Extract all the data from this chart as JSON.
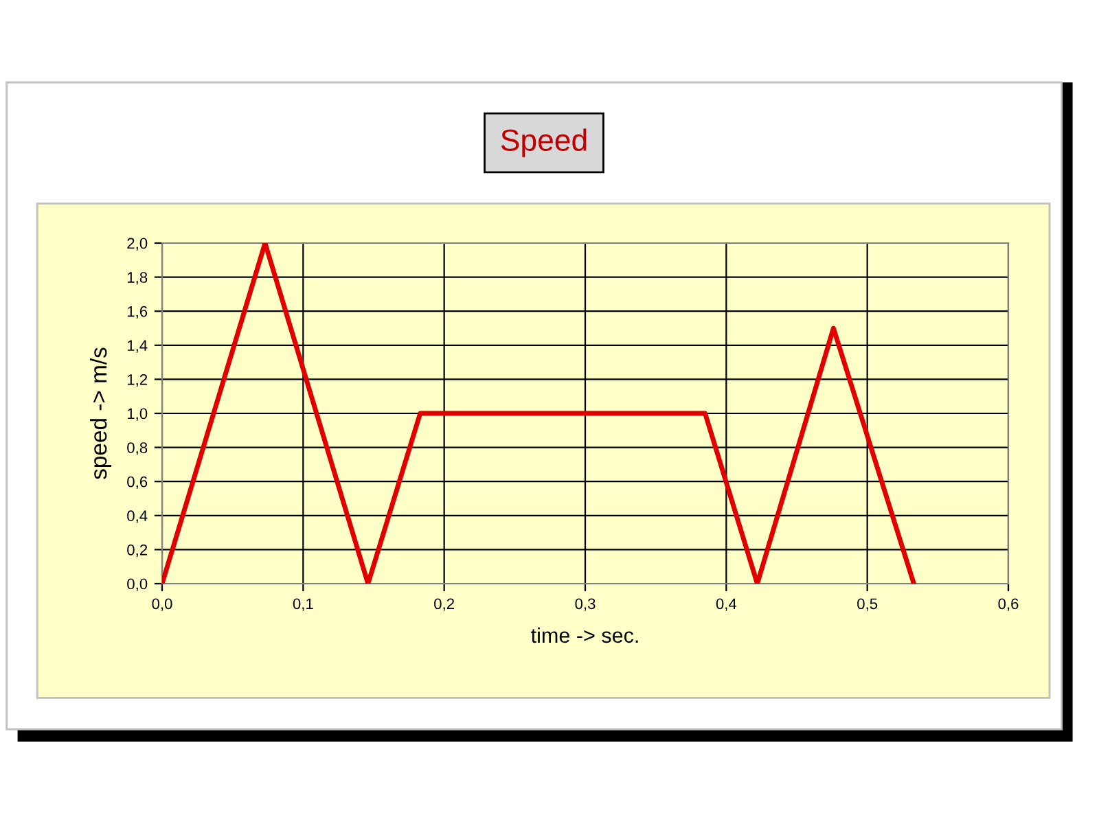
{
  "chart_data": {
    "type": "line",
    "title": "Speed",
    "xlabel": "time -> sec.",
    "ylabel": "speed -> m/s",
    "x": [
      0,
      0.073,
      0.146,
      0.183,
      0.385,
      0.422,
      0.476,
      0.533
    ],
    "series": [
      {
        "color": "#e00000",
        "values": [
          0,
          2.0,
          0,
          1.0,
          1.0,
          0,
          1.5,
          0
        ]
      }
    ],
    "xlim": [
      0,
      0.6
    ],
    "xticks": [
      {
        "value": 0,
        "label": "0,0"
      },
      {
        "value": 0.1,
        "label": "0,1"
      },
      {
        "value": 0.2,
        "label": "0,2"
      },
      {
        "value": 0.3,
        "label": "0,3"
      },
      {
        "value": 0.4,
        "label": "0,4"
      },
      {
        "value": 0.5,
        "label": "0,5"
      },
      {
        "value": 0.6,
        "label": "0,6"
      }
    ],
    "ylim": [
      0,
      2.0
    ],
    "yticks": [
      {
        "value": 0,
        "label": "0,0"
      },
      {
        "value": 0.2,
        "label": "0,2"
      },
      {
        "value": 0.4,
        "label": "0,4"
      },
      {
        "value": 0.6,
        "label": "0,6"
      },
      {
        "value": 0.8,
        "label": "0,8"
      },
      {
        "value": 1.0,
        "label": "1,0"
      },
      {
        "value": 1.2,
        "label": "1,2"
      },
      {
        "value": 1.4,
        "label": "1,4"
      },
      {
        "value": 1.6,
        "label": "1,6"
      },
      {
        "value": 1.8,
        "label": "1,8"
      },
      {
        "value": 2.0,
        "label": "2,0"
      }
    ],
    "grid": true,
    "marker": "none",
    "line_style": "solid"
  }
}
